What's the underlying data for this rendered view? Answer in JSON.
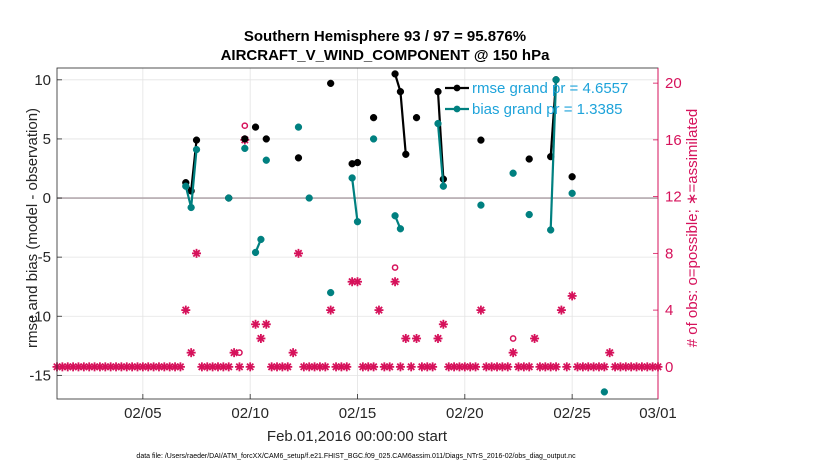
{
  "chart_data": {
    "type": "line",
    "title": "Southern Hemisphere 93 / 97 = 95.876%",
    "subtitle": "AIRCRAFT_V_WIND_COMPONENT @ 150 hPa",
    "xlabel": "Feb.01,2016 00:00:00 start",
    "ylabel": "rmse and bias (model - observation)",
    "y2label": "# of obs: o=possible; ∗=assimilated",
    "footnote": "data file: /Users/raeder/DAI/ATM_forcXX/CAM6_setup/f.e21.FHIST_BGC.f09_025.CAM6assim.011/Diags_NTrS_2016-02/obs_diag_output.nc",
    "xlim": [
      1,
      29
    ],
    "ylim": [
      -17,
      11
    ],
    "y2lim": [
      -2.2667,
      21.067
    ],
    "x_ticks": [
      5,
      10,
      15,
      20,
      25,
      29
    ],
    "x_tick_labels": [
      "02/05",
      "02/10",
      "02/15",
      "02/20",
      "02/25",
      "03/01"
    ],
    "y_ticks": [
      10,
      5,
      0,
      -5,
      -10,
      -15
    ],
    "y_tick_labels": [
      "10",
      "5",
      "0",
      "-5",
      "-10",
      "-15"
    ],
    "y2_ticks": [
      20,
      16,
      12,
      8,
      4,
      0
    ],
    "y2_tick_labels": [
      "20",
      "16",
      "12",
      "8",
      "4",
      "0"
    ],
    "grid": true,
    "zero_line": true,
    "legend_position": "top-right",
    "colors": {
      "rmse": "#000000",
      "bias": "#008080",
      "obs": "#d6125b",
      "legend_text": "#1ea3da",
      "zero": "#b3a8ad"
    },
    "series": [
      {
        "name": "rmse grand pr = 4.6557",
        "axis": "left",
        "marker": "filled-circle",
        "points": [
          [
            7.0,
            1.3
          ],
          [
            7.25,
            0.6
          ],
          [
            7.5,
            4.9
          ],
          [
            9.0,
            0.0
          ],
          [
            9.75,
            5.0
          ],
          [
            10.25,
            6.0
          ],
          [
            10.75,
            5.0
          ],
          [
            12.25,
            3.4
          ],
          [
            13.75,
            9.7
          ],
          [
            14.75,
            2.9
          ],
          [
            15.0,
            3.0
          ],
          [
            15.75,
            6.8
          ],
          [
            16.75,
            10.5
          ],
          [
            17.0,
            9.0
          ],
          [
            17.25,
            3.7
          ],
          [
            17.75,
            6.8
          ],
          [
            18.75,
            9.0
          ],
          [
            19.0,
            1.6
          ],
          [
            20.75,
            4.9
          ],
          [
            23.0,
            3.3
          ],
          [
            24.0,
            3.5
          ],
          [
            24.25,
            10.0
          ],
          [
            25.0,
            1.8
          ]
        ],
        "line_segments": [
          [
            7.0,
            7.25,
            7.5
          ],
          [
            14.75,
            15.0
          ],
          [
            16.75,
            17.0,
            17.25
          ],
          [
            18.75,
            19.0
          ],
          [
            24.0,
            24.25
          ]
        ]
      },
      {
        "name": "bias grand pr = 1.3385",
        "axis": "left",
        "marker": "filled-circle",
        "points": [
          [
            7.0,
            1.0
          ],
          [
            7.25,
            -0.8
          ],
          [
            7.5,
            4.1
          ],
          [
            9.0,
            0.0
          ],
          [
            9.75,
            4.2
          ],
          [
            10.25,
            -4.6
          ],
          [
            10.5,
            -3.5
          ],
          [
            10.75,
            3.2
          ],
          [
            12.25,
            6.0
          ],
          [
            12.75,
            0.0
          ],
          [
            13.75,
            -8.0
          ],
          [
            14.75,
            1.7
          ],
          [
            15.0,
            -2.0
          ],
          [
            15.75,
            5.0
          ],
          [
            16.75,
            -1.5
          ],
          [
            17.0,
            -2.6
          ],
          [
            18.75,
            6.3
          ],
          [
            19.0,
            1.0
          ],
          [
            20.75,
            -0.6
          ],
          [
            22.25,
            2.1
          ],
          [
            23.0,
            -1.4
          ],
          [
            24.0,
            -2.7
          ],
          [
            24.25,
            10.0
          ],
          [
            25.0,
            0.4
          ],
          [
            26.5,
            -16.4
          ]
        ],
        "line_segments": [
          [
            7.0,
            7.25,
            7.5
          ],
          [
            10.25,
            10.5
          ],
          [
            14.75,
            15.0
          ],
          [
            16.75,
            17.0
          ],
          [
            18.75,
            19.0
          ],
          [
            24.0,
            24.25
          ]
        ]
      },
      {
        "name": "# of obs possible",
        "axis": "right",
        "marker": "open-circle",
        "x": [
          9.5,
          9.75,
          16.75,
          22.25
        ],
        "values": [
          1,
          17,
          7,
          2
        ]
      },
      {
        "name": "# of obs assimilated",
        "axis": "right",
        "marker": "asterisk",
        "x": [
          1.0,
          1.25,
          1.5,
          1.75,
          2.0,
          2.25,
          2.5,
          2.75,
          3.0,
          3.25,
          3.5,
          3.75,
          4.0,
          4.25,
          4.5,
          4.75,
          5.0,
          5.25,
          5.5,
          5.75,
          6.0,
          6.25,
          6.5,
          6.75,
          7.0,
          7.25,
          7.5,
          7.75,
          8.0,
          8.25,
          8.5,
          8.75,
          9.0,
          9.25,
          9.5,
          9.75,
          10.0,
          10.25,
          10.5,
          10.75,
          11.0,
          11.25,
          11.5,
          11.75,
          12.0,
          12.25,
          12.5,
          12.75,
          13.0,
          13.25,
          13.5,
          13.75,
          14.0,
          14.25,
          14.5,
          14.75,
          15.0,
          15.25,
          15.5,
          15.75,
          16.0,
          16.25,
          16.5,
          16.75,
          17.0,
          17.25,
          17.5,
          17.75,
          18.0,
          18.25,
          18.5,
          18.75,
          19.0,
          19.25,
          19.5,
          19.75,
          20.0,
          20.25,
          20.5,
          20.75,
          21.0,
          21.25,
          21.5,
          21.75,
          22.0,
          22.25,
          22.5,
          22.75,
          23.0,
          23.25,
          23.5,
          23.75,
          24.0,
          24.25,
          24.5,
          24.75,
          25.0,
          25.25,
          25.5,
          25.75,
          26.0,
          26.25,
          26.5,
          26.75,
          27.0,
          27.25,
          27.5,
          27.75,
          28.0,
          28.25,
          28.5,
          28.75,
          29.0
        ],
        "values": [
          0,
          0,
          0,
          0,
          0,
          0,
          0,
          0,
          0,
          0,
          0,
          0,
          0,
          0,
          0,
          0,
          0,
          0,
          0,
          0,
          0,
          0,
          0,
          0,
          4,
          1,
          8,
          0,
          0,
          0,
          0,
          0,
          0,
          1,
          0,
          16,
          0,
          3,
          2,
          3,
          0,
          0,
          0,
          0,
          1,
          8,
          0,
          0,
          0,
          0,
          0,
          4,
          0,
          0,
          0,
          6,
          6,
          0,
          0,
          0,
          4,
          0,
          0,
          6,
          0,
          2,
          0,
          2,
          0,
          0,
          0,
          2,
          3,
          0,
          0,
          0,
          0,
          0,
          0,
          4,
          0,
          0,
          0,
          0,
          0,
          1,
          0,
          0,
          0,
          2,
          0,
          0,
          0,
          0,
          4,
          0,
          5,
          0,
          0,
          0,
          0,
          0,
          0,
          1,
          0,
          0,
          0,
          0,
          0,
          0,
          0,
          0,
          0
        ]
      }
    ],
    "legend": [
      {
        "label": "rmse grand pr = 4.6557",
        "series": "rmse"
      },
      {
        "label": "bias grand pr = 1.3385",
        "series": "bias"
      }
    ]
  }
}
